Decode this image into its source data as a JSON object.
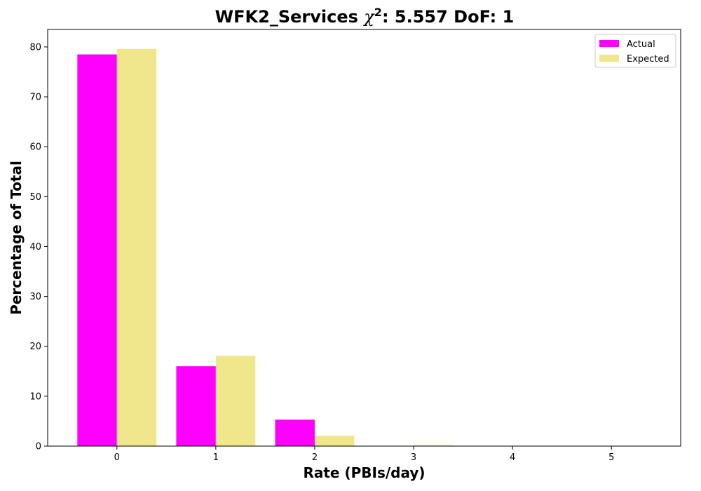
{
  "chart_data": {
    "type": "bar",
    "title": {
      "prefix": "WFK2_Services ",
      "symbol": "χ",
      "superscript": "2",
      "suffix": ": 5.557 DoF: 1"
    },
    "xlabel": "Rate (PBIs/day)",
    "ylabel": "Percentage of Total",
    "categories": [
      "0",
      "1",
      "2",
      "3",
      "4",
      "5"
    ],
    "ylim": [
      0,
      83.5
    ],
    "yticks": [
      0,
      10,
      20,
      30,
      40,
      50,
      60,
      70,
      80
    ],
    "grid": false,
    "legend_position": "top-right",
    "series": [
      {
        "name": "Actual",
        "color": "#ff00ff",
        "values": [
          78.5,
          16.0,
          5.3,
          0.0,
          0.0,
          0.0
        ]
      },
      {
        "name": "Expected",
        "color": "#f0e68c",
        "values": [
          79.6,
          18.1,
          2.1,
          0.2,
          0.0,
          0.0
        ]
      }
    ]
  }
}
